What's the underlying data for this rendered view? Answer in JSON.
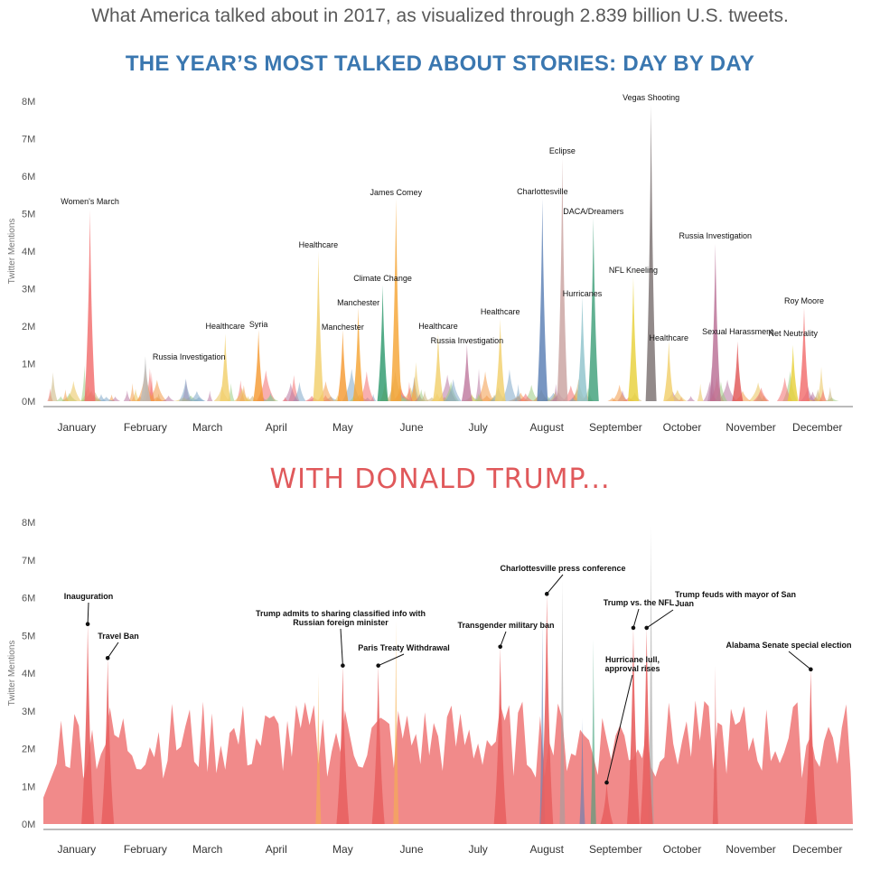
{
  "page": {
    "title": "What America talked about in 2017, as visualized through 2.839 billion U.S. tweets.",
    "subtitle": "THE YEAR’S MOST TALKED ABOUT STORIES: DAY BY DAY",
    "section2_title": "WITH DONALD TRUMP..."
  },
  "chart_data": [
    {
      "type": "area",
      "title": "THE YEAR’S MOST TALKED ABOUT STORIES: DAY BY DAY",
      "ylabel": "Twitter Mentions",
      "xlabel": "",
      "ylim": [
        0,
        8
      ],
      "yticks": [
        "0M",
        "1M",
        "2M",
        "3M",
        "4M",
        "5M",
        "6M",
        "7M",
        "8M"
      ],
      "months": [
        "January",
        "February",
        "March",
        "April",
        "May",
        "June",
        "July",
        "August",
        "September",
        "October",
        "November",
        "December"
      ],
      "x_unit": "day of 2017",
      "y_unit": "millions of Twitter mentions",
      "grid": false,
      "stories": [
        {
          "label": "Women's March",
          "x": 21,
          "y": 5.1,
          "color": "#f26d6d"
        },
        {
          "label": "Russia Investigation",
          "x": 46,
          "y": 1.2,
          "color": "#b9b9b9"
        },
        {
          "label": "Healthcare",
          "x": 82,
          "y": 1.8,
          "color": "#f2d06b"
        },
        {
          "label": "Syria",
          "x": 97,
          "y": 1.9,
          "color": "#f59a32"
        },
        {
          "label": "Healthcare",
          "x": 124,
          "y": 4.0,
          "color": "#f2d06b"
        },
        {
          "label": "Manchester",
          "x": 142,
          "y": 2.5,
          "color": "#f5a534"
        },
        {
          "label": "Manchester",
          "x": 135,
          "y": 1.9,
          "color": "#f59a32"
        },
        {
          "label": "Climate Change",
          "x": 153,
          "y": 3.1,
          "color": "#2e9a6e"
        },
        {
          "label": "James Comey",
          "x": 159,
          "y": 5.4,
          "color": "#f5a534"
        },
        {
          "label": "Healthcare",
          "x": 178,
          "y": 1.8,
          "color": "#f2d06b"
        },
        {
          "label": "Russia Investigation",
          "x": 191,
          "y": 1.5,
          "color": "#c07a9f"
        },
        {
          "label": "Healthcare",
          "x": 206,
          "y": 2.2,
          "color": "#f2d06b"
        },
        {
          "label": "Charlottesville",
          "x": 225,
          "y": 5.4,
          "color": "#5a7fb5"
        },
        {
          "label": "Eclipse",
          "x": 234,
          "y": 6.5,
          "color": "#c9a2a0"
        },
        {
          "label": "Hurricanes",
          "x": 243,
          "y": 2.8,
          "color": "#8fc3cc"
        },
        {
          "label": "DACA/Dreamers",
          "x": 248,
          "y": 4.9,
          "color": "#3fa07a"
        },
        {
          "label": "NFL Kneeling",
          "x": 266,
          "y": 3.3,
          "color": "#e8d13a"
        },
        {
          "label": "Vegas Shooting",
          "x": 274,
          "y": 7.9,
          "color": "#7a7070"
        },
        {
          "label": "Healthcare",
          "x": 282,
          "y": 1.6,
          "color": "#f2d06b"
        },
        {
          "label": "Russia Investigation",
          "x": 303,
          "y": 4.2,
          "color": "#b96f95"
        },
        {
          "label": "Sexual Harassment",
          "x": 313,
          "y": 1.6,
          "color": "#e05757"
        },
        {
          "label": "Net Neutrality",
          "x": 338,
          "y": 1.5,
          "color": "#e8d13a"
        },
        {
          "label": "Roy Moore",
          "x": 343,
          "y": 2.5,
          "color": "#f26d6d"
        }
      ]
    },
    {
      "type": "area",
      "title": "WITH DONALD TRUMP...",
      "ylabel": "Twitter Mentions",
      "xlabel": "",
      "ylim": [
        0,
        8
      ],
      "yticks": [
        "0M",
        "1M",
        "2M",
        "3M",
        "4M",
        "5M",
        "6M",
        "7M",
        "8M"
      ],
      "months": [
        "January",
        "February",
        "March",
        "April",
        "May",
        "June",
        "July",
        "August",
        "September",
        "October",
        "November",
        "December"
      ],
      "x_unit": "day of 2017",
      "y_unit": "millions of Twitter mentions",
      "grid": false,
      "series_color": "#ee7676",
      "events": [
        {
          "label": "Inauguration",
          "x": 20,
          "y": 5.3
        },
        {
          "label": "Travel Ban",
          "x": 29,
          "y": 4.4
        },
        {
          "label": "Trump admits to sharing classified info with Russian foreign minister",
          "x": 135,
          "y": 4.2
        },
        {
          "label": "Paris Treaty Withdrawal",
          "x": 151,
          "y": 4.2
        },
        {
          "label": "Transgender military ban",
          "x": 206,
          "y": 4.7
        },
        {
          "label": "Charlottesville press conference",
          "x": 227,
          "y": 6.1
        },
        {
          "label": "Hurricane lull, approval rises",
          "x": 254,
          "y": 1.1
        },
        {
          "label": "Trump vs. the NFL",
          "x": 266,
          "y": 5.2
        },
        {
          "label": "Trump feuds with mayor of San Juan",
          "x": 272,
          "y": 5.2
        },
        {
          "label": "Alabama Senate special election",
          "x": 346,
          "y": 4.1
        }
      ]
    }
  ]
}
